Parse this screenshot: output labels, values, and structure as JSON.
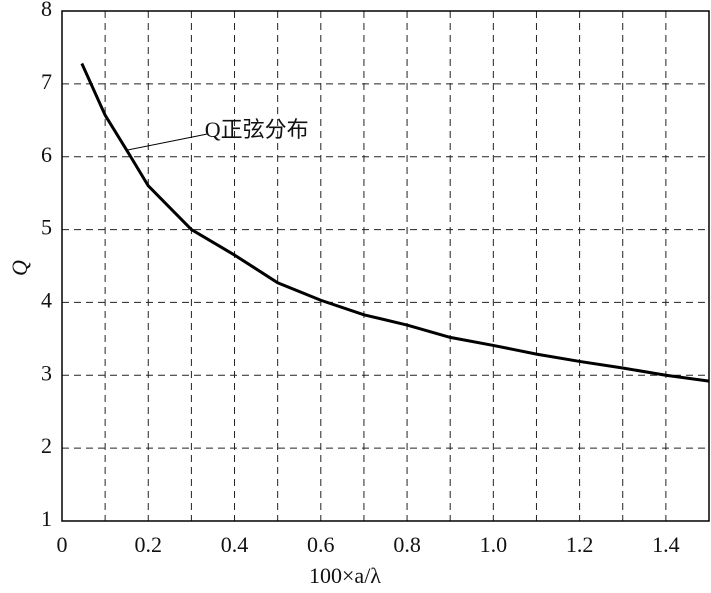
{
  "chart_data": {
    "type": "line",
    "x_label": "100×a/λ",
    "y_label": "Q",
    "annotation": "Q正弦分布",
    "x": [
      0.046,
      0.1,
      0.15,
      0.2,
      0.3,
      0.4,
      0.5,
      0.6,
      0.7,
      0.8,
      0.9,
      1.0,
      1.1,
      1.2,
      1.3,
      1.4,
      1.5
    ],
    "series": [
      {
        "name": "Q",
        "color": "#000000",
        "values": [
          7.28,
          6.57,
          6.09,
          5.6,
          5.0,
          4.65,
          4.27,
          4.03,
          3.83,
          3.69,
          3.52,
          3.41,
          3.29,
          3.19,
          3.1,
          3.0,
          2.92
        ]
      }
    ],
    "xlim": [
      0,
      1.5
    ],
    "ylim": [
      1,
      8
    ],
    "xticks": [
      0,
      0.2,
      0.4,
      0.6,
      0.8,
      {
        "value": 1,
        "label": "1.0"
      },
      1.2,
      1.4
    ],
    "xgrid": [
      0.1,
      0.3,
      0.5,
      0.7,
      0.9,
      1.1,
      1.3
    ],
    "yticks": [
      1,
      2,
      3,
      4,
      5,
      6,
      7,
      8
    ],
    "grid": true
  }
}
